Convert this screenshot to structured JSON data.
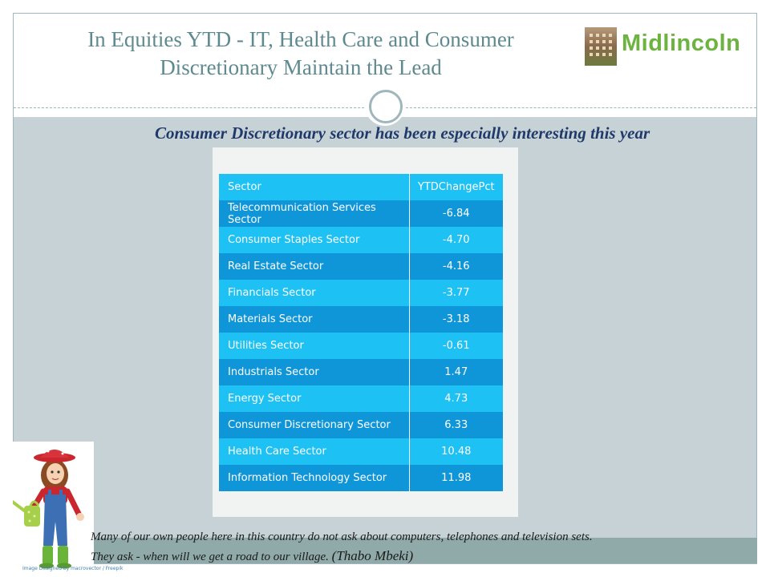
{
  "header": {
    "title_line1": "In Equities YTD - IT, Health Care and Consumer",
    "title_line2": "Discretionary Maintain the Lead",
    "logo_text": "Midlincoln"
  },
  "subtitle": "Consumer Discretionary sector has been especially interesting this year",
  "table": {
    "columns": [
      "Sector",
      "YTDChangePct"
    ],
    "rows": [
      {
        "sector": "Telecommunication Services Sector",
        "value": "-6.84"
      },
      {
        "sector": "Consumer Staples Sector",
        "value": "-4.70"
      },
      {
        "sector": "Real Estate Sector",
        "value": "-4.16"
      },
      {
        "sector": "Financials Sector",
        "value": "-3.77"
      },
      {
        "sector": "Materials Sector",
        "value": "-3.18"
      },
      {
        "sector": "Utilities Sector",
        "value": "-0.61"
      },
      {
        "sector": "Industrials Sector",
        "value": "1.47"
      },
      {
        "sector": "Energy Sector",
        "value": "4.73"
      },
      {
        "sector": "Consumer Discretionary Sector",
        "value": "6.33"
      },
      {
        "sector": "Health Care Sector",
        "value": "10.48"
      },
      {
        "sector": "Information Technology Sector",
        "value": "11.98"
      }
    ]
  },
  "quote": {
    "line1": "Many of our own people here in this country do not ask about computers, telephones and television sets.",
    "line2": "They ask - when will we get a road to our village.",
    "author": "(Thabo Mbeki)"
  },
  "image_credit": "Image Designed by macrovector / Freepik",
  "colors": {
    "title": "#5e8a8f",
    "logo_green": "#6db340",
    "subtitle": "#1f3a6a",
    "row_light": "#1dc1f3",
    "row_dark": "#0f96d8",
    "content_bg": "#c7d2d6",
    "bottom_bar": "#8faaa9"
  },
  "icons": [
    "building-logo-icon",
    "circle-ornament-icon",
    "gardener-girl-clipart-icon",
    "watering-can-icon"
  ]
}
